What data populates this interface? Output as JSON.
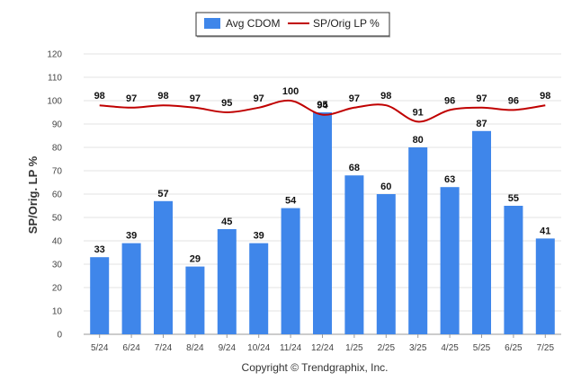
{
  "chart_data": {
    "type": "bar",
    "categories": [
      "5/24",
      "6/24",
      "7/24",
      "8/24",
      "9/24",
      "10/24",
      "11/24",
      "12/24",
      "1/25",
      "2/25",
      "3/25",
      "4/25",
      "5/25",
      "6/25",
      "7/25"
    ],
    "series": [
      {
        "name": "Avg CDOM",
        "type": "bar",
        "color": "#3f86ea",
        "values": [
          33,
          39,
          57,
          29,
          45,
          39,
          54,
          95,
          68,
          60,
          80,
          63,
          87,
          55,
          41
        ]
      },
      {
        "name": "SP/Orig LP %",
        "type": "line",
        "color": "#c00000",
        "values": [
          98,
          97,
          98,
          97,
          95,
          97,
          100,
          94,
          97,
          98,
          91,
          96,
          97,
          96,
          98
        ]
      }
    ],
    "ylabel": "SP/Orig. LP %",
    "ylim": [
      0,
      120
    ],
    "yticks": [
      0,
      10,
      20,
      30,
      40,
      50,
      60,
      70,
      80,
      90,
      100,
      110,
      120
    ],
    "grid": true,
    "legend_position": "top-center"
  },
  "footer": {
    "copyright": "Copyright © Trendgraphix, Inc."
  }
}
